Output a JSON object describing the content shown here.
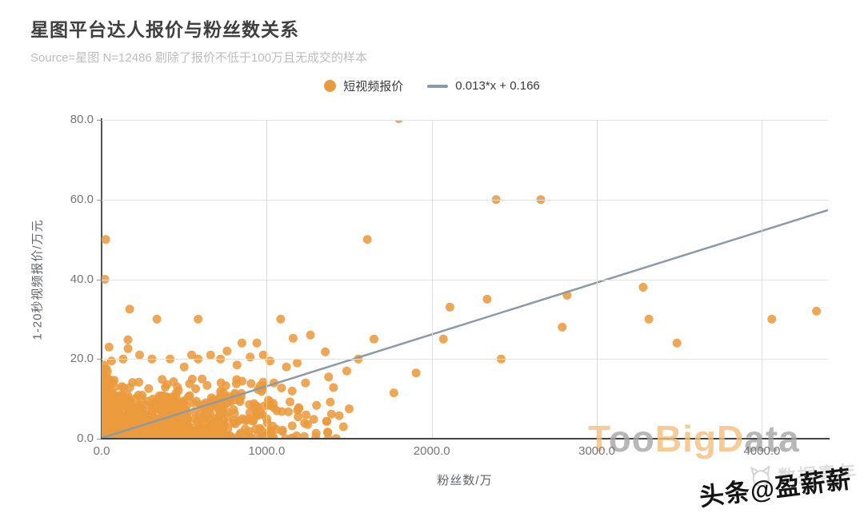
{
  "header": {
    "title": "星图平台达人报价与粉丝数关系",
    "subtitle": "Source=星图 N=12486 剔除了报价不低于100万且无成交的样本"
  },
  "legend": {
    "series_label": "短视频报价",
    "trend_label": "0.013*x + 0.166",
    "dot_color": "#EA9A3D",
    "line_color": "#8C99A6"
  },
  "watermarks": {
    "big": {
      "parts": [
        {
          "text": "T",
          "color": "#f3c184"
        },
        {
          "text": "oo",
          "color": "#a6a6a6"
        },
        {
          "text": "Big",
          "color": "#f5bf7e"
        },
        {
          "text": "D",
          "color": "#f5bf7e"
        },
        {
          "text": "ata",
          "color": "#a6a6a6"
        }
      ]
    },
    "corner_text": "数据青年",
    "handle_text": "头条@盈薪薪"
  },
  "chart_data": {
    "type": "scatter",
    "title": "星图平台达人报价与粉丝数关系",
    "xlabel": "粉丝数/万",
    "ylabel": "1-20秒视频报价/万元",
    "xlim": [
      0,
      4400
    ],
    "ylim": [
      0,
      80
    ],
    "grid": true,
    "legend_position": "top-center",
    "x_ticks": [
      {
        "value": 0,
        "label": "0.0"
      },
      {
        "value": 1000,
        "label": "1000.0"
      },
      {
        "value": 2000,
        "label": "2000.0"
      },
      {
        "value": 3000,
        "label": "3000.0"
      },
      {
        "value": 4000,
        "label": "4000.0"
      }
    ],
    "y_ticks": [
      {
        "value": 0,
        "label": "0.0"
      },
      {
        "value": 20,
        "label": "20.0"
      },
      {
        "value": 40,
        "label": "40.0"
      },
      {
        "value": 60,
        "label": "60.0"
      },
      {
        "value": 80,
        "label": "80.0"
      }
    ],
    "trend_line": {
      "slope": 0.013,
      "intercept": 0.166,
      "x_start": 0,
      "x_end": 4400,
      "color": "#8C99A6",
      "label": "0.013*x + 0.166"
    },
    "series_name": "短视频报价",
    "point_style": {
      "color": "#EA9A3D",
      "radius": 5.5,
      "opacity": 0.87
    },
    "points": [
      [
        1800,
        80.3
      ],
      [
        2390,
        60
      ],
      [
        2660,
        60
      ],
      [
        25,
        50
      ],
      [
        1610,
        50
      ],
      [
        20,
        40
      ],
      [
        3280,
        38
      ],
      [
        2820,
        36
      ],
      [
        2335,
        35
      ],
      [
        2110,
        33
      ],
      [
        4330,
        32
      ],
      [
        170,
        32.5
      ],
      [
        335,
        30
      ],
      [
        585,
        30
      ],
      [
        1085,
        30
      ],
      [
        3315,
        30
      ],
      [
        4060,
        30
      ],
      [
        2790,
        28
      ],
      [
        1265,
        26
      ],
      [
        1160,
        25.2
      ],
      [
        1650,
        25
      ],
      [
        2070,
        25
      ],
      [
        160,
        24.8
      ],
      [
        3485,
        24
      ],
      [
        850,
        24
      ],
      [
        940,
        24
      ],
      [
        45,
        23
      ],
      [
        160,
        22.6
      ],
      [
        1355,
        21.8
      ],
      [
        305,
        20
      ],
      [
        415,
        20
      ],
      [
        585,
        20
      ],
      [
        720,
        20
      ],
      [
        1555,
        20
      ],
      [
        2420,
        20
      ],
      [
        900,
        20.5
      ],
      [
        660,
        21
      ],
      [
        760,
        22
      ],
      [
        980,
        21
      ],
      [
        1020,
        19.5
      ],
      [
        820,
        18.5
      ],
      [
        1120,
        18
      ],
      [
        1185,
        19
      ],
      [
        1905,
        16.5
      ],
      [
        1485,
        17
      ],
      [
        1375,
        15.5
      ],
      [
        1770,
        11.5
      ],
      [
        1500,
        7.5
      ],
      [
        1190,
        5.5
      ],
      [
        1465,
        3
      ],
      [
        1235,
        14
      ],
      [
        60,
        19.5
      ],
      [
        15,
        18.5
      ],
      [
        30,
        17.5
      ],
      [
        10,
        16.5
      ],
      [
        230,
        21
      ],
      [
        130,
        20
      ],
      [
        500,
        18
      ],
      [
        545,
        21
      ]
    ],
    "dense_cluster": {
      "note": "unresolvable dense mass of ~12k samples near origin, reproduced as seeded sample",
      "seed": 42,
      "regions": [
        {
          "count": 500,
          "x": [
            0,
            750
          ],
          "y": [
            0,
            11
          ],
          "x_pow": 1.25,
          "y_pow": 2.0
        },
        {
          "count": 260,
          "x": [
            0,
            1050
          ],
          "y": [
            0,
            15
          ],
          "x_pow": 1.2,
          "y_pow": 1.8
        },
        {
          "count": 70,
          "x": [
            650,
            1450
          ],
          "y": [
            0,
            13
          ],
          "x_pow": 1.0,
          "y_pow": 1.6
        },
        {
          "count": 60,
          "x": [
            0,
            40
          ],
          "y": [
            0,
            18
          ],
          "x_pow": 1.0,
          "y_pow": 1.2
        }
      ]
    }
  }
}
